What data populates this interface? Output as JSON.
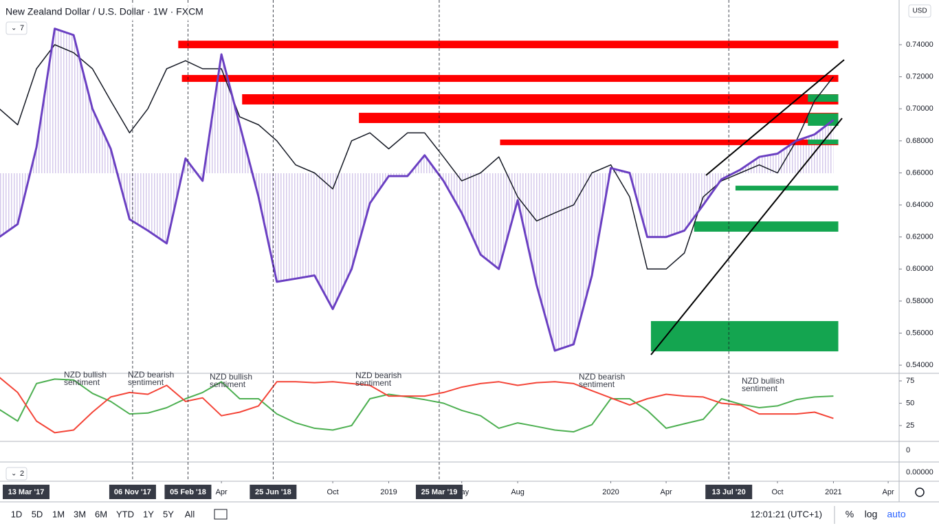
{
  "header": {
    "title": "New Zealand Dollar / U.S. Dollar · 1W · FXCM",
    "currency": "USD",
    "pane_buttons": [
      "7",
      "2"
    ]
  },
  "chart_data": [
    {
      "type": "line",
      "x": [
        "2017-04-01",
        "2017-05-01",
        "2017-06-01",
        "2017-07-01",
        "2017-08-01",
        "2017-09-01",
        "2017-10-01",
        "2017-11-01",
        "2017-12-01",
        "2018-01-01",
        "2018-02-01",
        "2018-03-01",
        "2018-04-01",
        "2018-05-01",
        "2018-06-01",
        "2018-07-01",
        "2018-08-01",
        "2018-09-01",
        "2018-10-01",
        "2018-11-01",
        "2018-12-01",
        "2019-01-01",
        "2019-02-01",
        "2019-03-01",
        "2019-04-01",
        "2019-05-01",
        "2019-06-01",
        "2019-07-01",
        "2019-08-01",
        "2019-09-01",
        "2019-10-01",
        "2019-11-01",
        "2019-12-01",
        "2020-01-01",
        "2020-02-01",
        "2020-03-01",
        "2020-04-01",
        "2020-05-01",
        "2020-06-01",
        "2020-07-01",
        "2020-08-01",
        "2020-09-01",
        "2020-10-01",
        "2020-11-01",
        "2020-12-01",
        "2021-01-01"
      ],
      "xlim": [
        "2017-04-02",
        "2021-04-19"
      ],
      "xticks": [
        {
          "value": "2018-04-01",
          "label": "Apr"
        },
        {
          "value": "2018-10-01",
          "label": "Oct"
        },
        {
          "value": "2019-01-01",
          "label": "2019"
        },
        {
          "value": "2019-05-01",
          "label": "May"
        },
        {
          "value": "2019-08-01",
          "label": "Aug"
        },
        {
          "value": "2020-01-01",
          "label": "2020"
        },
        {
          "value": "2020-04-01",
          "label": "Apr"
        },
        {
          "value": "2020-10-01",
          "label": "Oct"
        },
        {
          "value": "2021-01-01",
          "label": "2021"
        },
        {
          "value": "2021-04-01",
          "label": "Apr"
        }
      ],
      "event_dates": [
        {
          "value": "2017-03-13",
          "label": "13 Mar '17"
        },
        {
          "value": "2017-11-06",
          "label": "06 Nov '17"
        },
        {
          "value": "2018-02-05",
          "label": "05 Feb '18"
        },
        {
          "value": "2018-06-25",
          "label": "25 Jun '18"
        },
        {
          "value": "2019-03-25",
          "label": "25 Mar '19"
        },
        {
          "value": "2020-07-13",
          "label": "13 Jul '20"
        }
      ],
      "ylim": [
        0.5349,
        0.7679
      ],
      "yticks": [
        {
          "value": 0.54,
          "label": "0.54000"
        },
        {
          "value": 0.56,
          "label": "0.56000"
        },
        {
          "value": 0.58,
          "label": "0.58000"
        },
        {
          "value": 0.6,
          "label": "0.60000"
        },
        {
          "value": 0.62,
          "label": "0.62000"
        },
        {
          "value": 0.64,
          "label": "0.64000"
        },
        {
          "value": 0.66,
          "label": "0.66000"
        },
        {
          "value": 0.68,
          "label": "0.68000"
        },
        {
          "value": 0.7,
          "label": "0.70000"
        },
        {
          "value": 0.72,
          "label": "0.72000"
        },
        {
          "value": 0.74,
          "label": "0.74000"
        }
      ],
      "series": [
        {
          "color": "#131722",
          "values": [
            0.7,
            0.69,
            0.725,
            0.74,
            0.735,
            0.725,
            0.705,
            0.685,
            0.7,
            0.725,
            0.73,
            0.725,
            0.725,
            0.695,
            0.69,
            0.68,
            0.665,
            0.66,
            0.65,
            0.68,
            0.685,
            0.675,
            0.685,
            0.685,
            0.67,
            0.655,
            0.66,
            0.67,
            0.645,
            0.63,
            0.635,
            0.64,
            0.66,
            0.665,
            0.645,
            0.6,
            0.6,
            0.61,
            0.645,
            0.655,
            0.66,
            0.665,
            0.66,
            0.68,
            0.705,
            0.72
          ]
        },
        {
          "color": "#6a3fc2",
          "values": [
            0.62,
            0.628,
            0.676,
            0.75,
            0.746,
            0.7,
            0.675,
            0.631,
            0.624,
            0.616,
            0.669,
            0.655,
            0.734,
            0.69,
            0.645,
            0.592,
            0.594,
            0.596,
            0.575,
            0.6,
            0.641,
            0.658,
            0.658,
            0.671,
            0.655,
            0.635,
            0.609,
            0.6,
            0.643,
            0.59,
            0.549,
            0.553,
            0.596,
            0.663,
            0.66,
            0.62,
            0.62,
            0.624,
            0.64,
            0.656,
            0.662,
            0.67,
            0.672,
            0.68,
            0.684,
            0.693
          ]
        }
      ],
      "zones": [
        {
          "color": "#ff0000",
          "start": "2018-01-20",
          "end": "2021-01-09",
          "low": 0.7378,
          "high": 0.7425
        },
        {
          "color": "#ff0000",
          "start": "2018-01-26",
          "end": "2021-01-09",
          "low": 0.7168,
          "high": 0.7211
        },
        {
          "color": "#ff0000",
          "start": "2018-05-05",
          "end": "2021-01-09",
          "low": 0.7027,
          "high": 0.7091
        },
        {
          "color": "#ff0000",
          "start": "2018-11-13",
          "end": "2021-01-09",
          "low": 0.6911,
          "high": 0.6975
        },
        {
          "color": "#ff0000",
          "start": "2019-07-03",
          "end": "2021-01-09",
          "low": 0.6773,
          "high": 0.6808
        },
        {
          "color": "#14a550",
          "start": "2020-11-20",
          "end": "2021-01-09",
          "low": 0.7044,
          "high": 0.709
        },
        {
          "color": "#14a550",
          "start": "2020-11-20",
          "end": "2021-01-09",
          "low": 0.6894,
          "high": 0.6971
        },
        {
          "color": "#14a550",
          "start": "2020-11-20",
          "end": "2021-01-09",
          "low": 0.6778,
          "high": 0.6808
        },
        {
          "color": "#14a550",
          "start": "2020-07-24",
          "end": "2021-01-09",
          "low": 0.649,
          "high": 0.652
        },
        {
          "color": "#14a550",
          "start": "2020-05-17",
          "end": "2021-01-09",
          "low": 0.6233,
          "high": 0.6297
        },
        {
          "color": "#14a550",
          "start": "2020-03-07",
          "end": "2021-01-09",
          "low": 0.5486,
          "high": 0.5675
        }
      ]
    },
    {
      "type": "line",
      "x": [
        "2017-04-01",
        "2017-05-01",
        "2017-06-01",
        "2017-07-01",
        "2017-08-01",
        "2017-09-01",
        "2017-10-01",
        "2017-11-01",
        "2017-12-01",
        "2018-01-01",
        "2018-02-01",
        "2018-03-01",
        "2018-04-01",
        "2018-05-01",
        "2018-06-01",
        "2018-07-01",
        "2018-08-01",
        "2018-09-01",
        "2018-10-01",
        "2018-11-01",
        "2018-12-01",
        "2019-01-01",
        "2019-02-01",
        "2019-03-01",
        "2019-04-01",
        "2019-05-01",
        "2019-06-01",
        "2019-07-01",
        "2019-08-01",
        "2019-09-01",
        "2019-10-01",
        "2019-11-01",
        "2019-12-01",
        "2020-01-01",
        "2020-02-01",
        "2020-03-01",
        "2020-04-01",
        "2020-05-01",
        "2020-06-01",
        "2020-07-01",
        "2020-08-01",
        "2020-09-01",
        "2020-10-01",
        "2020-11-01",
        "2020-12-01",
        "2021-01-01"
      ],
      "ylim": [
        7.3,
        83.5
      ],
      "yticks": [
        25,
        50,
        75
      ],
      "series": [
        {
          "color": "#4caf50",
          "values": [
            43,
            30,
            72,
            77,
            76,
            61,
            52,
            38,
            39,
            45,
            55,
            62,
            74,
            55,
            55,
            38,
            28,
            22,
            20,
            25,
            55,
            60,
            57,
            54,
            50,
            42,
            36,
            22,
            28,
            24,
            20,
            18,
            26,
            55,
            55,
            42,
            22,
            27,
            32,
            55,
            49,
            45,
            47,
            54,
            57,
            58
          ]
        },
        {
          "color": "#f44336",
          "values": [
            79,
            62,
            30,
            17,
            20,
            40,
            57,
            62,
            60,
            70,
            52,
            56,
            36,
            40,
            47,
            74,
            74,
            73,
            74,
            72,
            70,
            58,
            58,
            58,
            62,
            68,
            72,
            74,
            70,
            73,
            74,
            72,
            64,
            56,
            48,
            55,
            60,
            58,
            57,
            50,
            48,
            38,
            38,
            38,
            40,
            33
          ]
        }
      ],
      "annotations": [
        {
          "lines": [
            "NZD bullish",
            "sentiment"
          ]
        },
        {
          "lines": [
            "NZD bearish",
            "sentiment"
          ]
        },
        {
          "lines": [
            "NZD bullish",
            "sentiment"
          ]
        },
        {
          "lines": [
            "NZD bearish",
            "sentiment"
          ]
        },
        {
          "lines": [
            "NZD bearish",
            "sentiment"
          ]
        },
        {
          "lines": [
            "NZD bullish",
            "sentiment"
          ]
        }
      ]
    }
  ],
  "extra_axis_labels": [
    "0",
    "0.00000"
  ],
  "toolbar": {
    "ranges": [
      "1D",
      "5D",
      "1M",
      "3M",
      "6M",
      "YTD",
      "1Y",
      "5Y",
      "All"
    ],
    "time": "12:01:21 (UTC+1)",
    "options": [
      "%",
      "log",
      "auto"
    ]
  }
}
